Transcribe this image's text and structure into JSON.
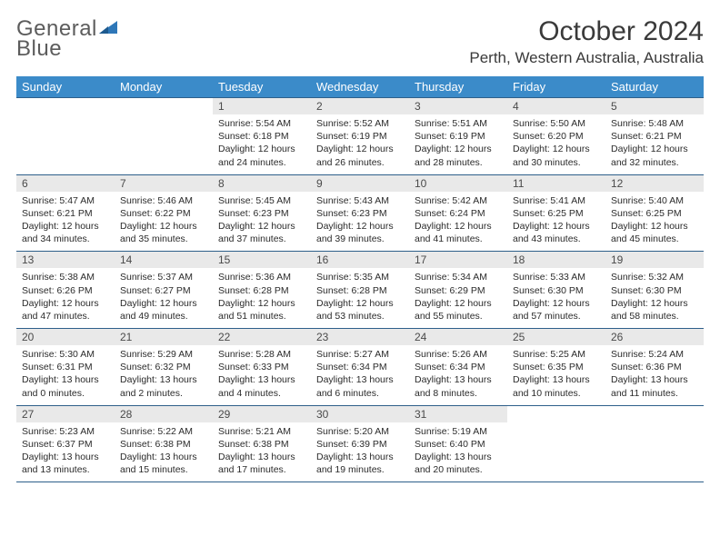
{
  "logo": {
    "word1": "General",
    "word2": "Blue"
  },
  "title": "October 2024",
  "location": "Perth, Western Australia, Australia",
  "colors": {
    "header_bg": "#3b8bc9",
    "header_text": "#ffffff",
    "daynum_bg": "#e9e9e9",
    "border": "#2e5f8a",
    "text": "#2b2b2b",
    "logo_gray": "#5c5c5c",
    "logo_blue": "#2e77b8"
  },
  "day_labels": [
    "Sunday",
    "Monday",
    "Tuesday",
    "Wednesday",
    "Thursday",
    "Friday",
    "Saturday"
  ],
  "weeks": [
    [
      {
        "n": "",
        "l1": "",
        "l2": "",
        "l3": "",
        "l4": ""
      },
      {
        "n": "",
        "l1": "",
        "l2": "",
        "l3": "",
        "l4": ""
      },
      {
        "n": "1",
        "l1": "Sunrise: 5:54 AM",
        "l2": "Sunset: 6:18 PM",
        "l3": "Daylight: 12 hours",
        "l4": "and 24 minutes."
      },
      {
        "n": "2",
        "l1": "Sunrise: 5:52 AM",
        "l2": "Sunset: 6:19 PM",
        "l3": "Daylight: 12 hours",
        "l4": "and 26 minutes."
      },
      {
        "n": "3",
        "l1": "Sunrise: 5:51 AM",
        "l2": "Sunset: 6:19 PM",
        "l3": "Daylight: 12 hours",
        "l4": "and 28 minutes."
      },
      {
        "n": "4",
        "l1": "Sunrise: 5:50 AM",
        "l2": "Sunset: 6:20 PM",
        "l3": "Daylight: 12 hours",
        "l4": "and 30 minutes."
      },
      {
        "n": "5",
        "l1": "Sunrise: 5:48 AM",
        "l2": "Sunset: 6:21 PM",
        "l3": "Daylight: 12 hours",
        "l4": "and 32 minutes."
      }
    ],
    [
      {
        "n": "6",
        "l1": "Sunrise: 5:47 AM",
        "l2": "Sunset: 6:21 PM",
        "l3": "Daylight: 12 hours",
        "l4": "and 34 minutes."
      },
      {
        "n": "7",
        "l1": "Sunrise: 5:46 AM",
        "l2": "Sunset: 6:22 PM",
        "l3": "Daylight: 12 hours",
        "l4": "and 35 minutes."
      },
      {
        "n": "8",
        "l1": "Sunrise: 5:45 AM",
        "l2": "Sunset: 6:23 PM",
        "l3": "Daylight: 12 hours",
        "l4": "and 37 minutes."
      },
      {
        "n": "9",
        "l1": "Sunrise: 5:43 AM",
        "l2": "Sunset: 6:23 PM",
        "l3": "Daylight: 12 hours",
        "l4": "and 39 minutes."
      },
      {
        "n": "10",
        "l1": "Sunrise: 5:42 AM",
        "l2": "Sunset: 6:24 PM",
        "l3": "Daylight: 12 hours",
        "l4": "and 41 minutes."
      },
      {
        "n": "11",
        "l1": "Sunrise: 5:41 AM",
        "l2": "Sunset: 6:25 PM",
        "l3": "Daylight: 12 hours",
        "l4": "and 43 minutes."
      },
      {
        "n": "12",
        "l1": "Sunrise: 5:40 AM",
        "l2": "Sunset: 6:25 PM",
        "l3": "Daylight: 12 hours",
        "l4": "and 45 minutes."
      }
    ],
    [
      {
        "n": "13",
        "l1": "Sunrise: 5:38 AM",
        "l2": "Sunset: 6:26 PM",
        "l3": "Daylight: 12 hours",
        "l4": "and 47 minutes."
      },
      {
        "n": "14",
        "l1": "Sunrise: 5:37 AM",
        "l2": "Sunset: 6:27 PM",
        "l3": "Daylight: 12 hours",
        "l4": "and 49 minutes."
      },
      {
        "n": "15",
        "l1": "Sunrise: 5:36 AM",
        "l2": "Sunset: 6:28 PM",
        "l3": "Daylight: 12 hours",
        "l4": "and 51 minutes."
      },
      {
        "n": "16",
        "l1": "Sunrise: 5:35 AM",
        "l2": "Sunset: 6:28 PM",
        "l3": "Daylight: 12 hours",
        "l4": "and 53 minutes."
      },
      {
        "n": "17",
        "l1": "Sunrise: 5:34 AM",
        "l2": "Sunset: 6:29 PM",
        "l3": "Daylight: 12 hours",
        "l4": "and 55 minutes."
      },
      {
        "n": "18",
        "l1": "Sunrise: 5:33 AM",
        "l2": "Sunset: 6:30 PM",
        "l3": "Daylight: 12 hours",
        "l4": "and 57 minutes."
      },
      {
        "n": "19",
        "l1": "Sunrise: 5:32 AM",
        "l2": "Sunset: 6:30 PM",
        "l3": "Daylight: 12 hours",
        "l4": "and 58 minutes."
      }
    ],
    [
      {
        "n": "20",
        "l1": "Sunrise: 5:30 AM",
        "l2": "Sunset: 6:31 PM",
        "l3": "Daylight: 13 hours",
        "l4": "and 0 minutes."
      },
      {
        "n": "21",
        "l1": "Sunrise: 5:29 AM",
        "l2": "Sunset: 6:32 PM",
        "l3": "Daylight: 13 hours",
        "l4": "and 2 minutes."
      },
      {
        "n": "22",
        "l1": "Sunrise: 5:28 AM",
        "l2": "Sunset: 6:33 PM",
        "l3": "Daylight: 13 hours",
        "l4": "and 4 minutes."
      },
      {
        "n": "23",
        "l1": "Sunrise: 5:27 AM",
        "l2": "Sunset: 6:34 PM",
        "l3": "Daylight: 13 hours",
        "l4": "and 6 minutes."
      },
      {
        "n": "24",
        "l1": "Sunrise: 5:26 AM",
        "l2": "Sunset: 6:34 PM",
        "l3": "Daylight: 13 hours",
        "l4": "and 8 minutes."
      },
      {
        "n": "25",
        "l1": "Sunrise: 5:25 AM",
        "l2": "Sunset: 6:35 PM",
        "l3": "Daylight: 13 hours",
        "l4": "and 10 minutes."
      },
      {
        "n": "26",
        "l1": "Sunrise: 5:24 AM",
        "l2": "Sunset: 6:36 PM",
        "l3": "Daylight: 13 hours",
        "l4": "and 11 minutes."
      }
    ],
    [
      {
        "n": "27",
        "l1": "Sunrise: 5:23 AM",
        "l2": "Sunset: 6:37 PM",
        "l3": "Daylight: 13 hours",
        "l4": "and 13 minutes."
      },
      {
        "n": "28",
        "l1": "Sunrise: 5:22 AM",
        "l2": "Sunset: 6:38 PM",
        "l3": "Daylight: 13 hours",
        "l4": "and 15 minutes."
      },
      {
        "n": "29",
        "l1": "Sunrise: 5:21 AM",
        "l2": "Sunset: 6:38 PM",
        "l3": "Daylight: 13 hours",
        "l4": "and 17 minutes."
      },
      {
        "n": "30",
        "l1": "Sunrise: 5:20 AM",
        "l2": "Sunset: 6:39 PM",
        "l3": "Daylight: 13 hours",
        "l4": "and 19 minutes."
      },
      {
        "n": "31",
        "l1": "Sunrise: 5:19 AM",
        "l2": "Sunset: 6:40 PM",
        "l3": "Daylight: 13 hours",
        "l4": "and 20 minutes."
      },
      {
        "n": "",
        "l1": "",
        "l2": "",
        "l3": "",
        "l4": ""
      },
      {
        "n": "",
        "l1": "",
        "l2": "",
        "l3": "",
        "l4": ""
      }
    ]
  ]
}
